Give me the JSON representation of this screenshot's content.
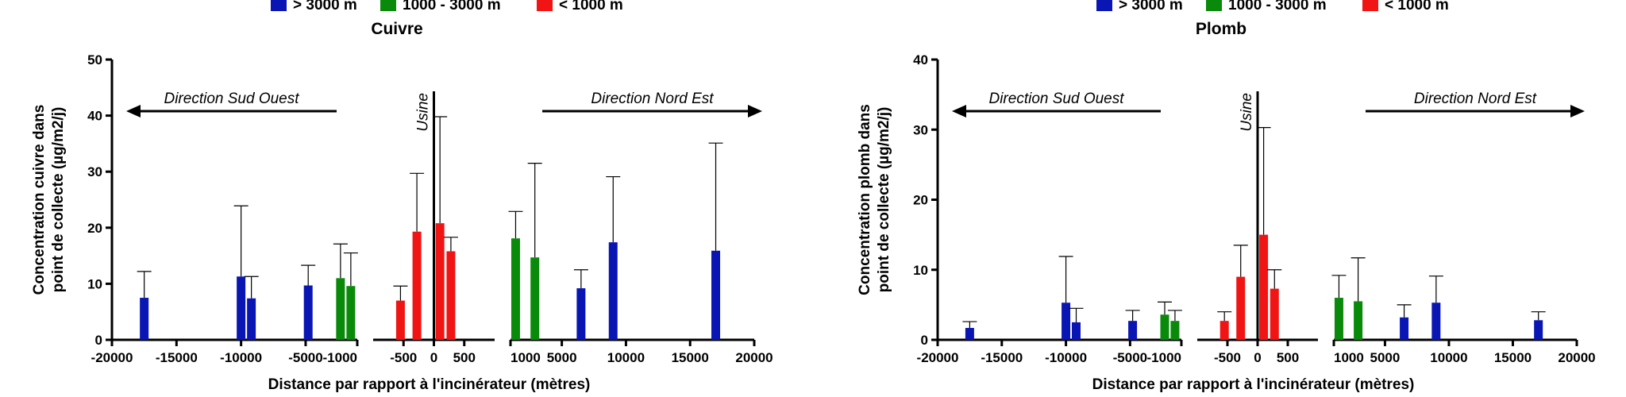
{
  "colors": {
    "far": "#0a16b4",
    "mid": "#0a8a0a",
    "near": "#f01414"
  },
  "chart_data": [
    {
      "type": "bar",
      "title": "Cuivre",
      "xlabel": "Distance par rapport à l'incinérateur (mètres)",
      "ylabel_line1": "Concentration cuivre dans",
      "ylabel_line2": "point de collecte (µg/m2/j)",
      "ylim": [
        0,
        50
      ],
      "y_ticks": [
        "0",
        "10",
        "20",
        "30",
        "40",
        "50"
      ],
      "x_ticks_left": [
        "-20000",
        "-15000",
        "-10000",
        "-5000"
      ],
      "x_ticks_mid": [
        "-1000",
        "-500",
        "0",
        "500",
        "1000"
      ],
      "x_ticks_right": [
        "5000",
        "10000",
        "15000",
        "20000"
      ],
      "legend": [
        "> 3000 m",
        "1000 - 3000 m",
        "< 1000 m"
      ],
      "left_arrow_label": "Direction Sud Ouest",
      "right_arrow_label": "Direction Nord Est",
      "plant_label": "Usine",
      "bars": [
        {
          "x": -17500,
          "value": 7.5,
          "err": 12.2,
          "group": "far"
        },
        {
          "x": -10000,
          "value": 11.3,
          "err": 23.9,
          "group": "far"
        },
        {
          "x": -9200,
          "value": 7.4,
          "err": 11.3,
          "group": "far"
        },
        {
          "x": -4800,
          "value": 9.7,
          "err": 13.3,
          "group": "far"
        },
        {
          "x": -2300,
          "value": 11.0,
          "err": 17.1,
          "group": "mid"
        },
        {
          "x": -1500,
          "value": 9.6,
          "err": 15.5,
          "group": "mid"
        },
        {
          "x": -550,
          "value": 7.0,
          "err": 9.6,
          "group": "near"
        },
        {
          "x": -280,
          "value": 19.3,
          "err": 29.7,
          "group": "near"
        },
        {
          "x": 100,
          "value": 20.8,
          "err": 39.8,
          "group": "near"
        },
        {
          "x": 280,
          "value": 15.8,
          "err": 18.3,
          "group": "near"
        },
        {
          "x": 1400,
          "value": 18.1,
          "err": 22.9,
          "group": "mid"
        },
        {
          "x": 2900,
          "value": 14.7,
          "err": 31.5,
          "group": "mid"
        },
        {
          "x": 6500,
          "value": 9.2,
          "err": 12.5,
          "group": "far"
        },
        {
          "x": 9000,
          "value": 17.4,
          "err": 29.1,
          "group": "far"
        },
        {
          "x": 17000,
          "value": 15.9,
          "err": 35.1,
          "group": "far"
        }
      ]
    },
    {
      "type": "bar",
      "title": "Plomb",
      "xlabel": "Distance par rapport à l'incinérateur (mètres)",
      "ylabel_line1": "Concentration plomb dans",
      "ylabel_line2": "point de collecte (µg/m2/j)",
      "ylim": [
        0,
        40
      ],
      "y_ticks": [
        "0",
        "10",
        "20",
        "30",
        "40"
      ],
      "x_ticks_left": [
        "-20000",
        "-15000",
        "-10000",
        "-5000"
      ],
      "x_ticks_mid": [
        "-1000",
        "-500",
        "0",
        "500",
        "1000"
      ],
      "x_ticks_right": [
        "5000",
        "10000",
        "15000",
        "20000"
      ],
      "legend": [
        "> 3000 m",
        "1000 - 3000 m",
        "< 1000 m"
      ],
      "left_arrow_label": "Direction Sud Ouest",
      "right_arrow_label": "Direction Nord Est",
      "plant_label": "Usine",
      "bars": [
        {
          "x": -17500,
          "value": 1.7,
          "err": 2.6,
          "group": "far"
        },
        {
          "x": -10000,
          "value": 5.3,
          "err": 11.9,
          "group": "far"
        },
        {
          "x": -9200,
          "value": 2.5,
          "err": 4.5,
          "group": "far"
        },
        {
          "x": -4800,
          "value": 2.7,
          "err": 4.2,
          "group": "far"
        },
        {
          "x": -2300,
          "value": 3.6,
          "err": 5.4,
          "group": "mid"
        },
        {
          "x": -1500,
          "value": 2.7,
          "err": 4.2,
          "group": "mid"
        },
        {
          "x": -550,
          "value": 2.7,
          "err": 4.0,
          "group": "near"
        },
        {
          "x": -280,
          "value": 9.0,
          "err": 13.5,
          "group": "near"
        },
        {
          "x": 100,
          "value": 15.0,
          "err": 30.3,
          "group": "near"
        },
        {
          "x": 280,
          "value": 7.3,
          "err": 10.0,
          "group": "near"
        },
        {
          "x": 1400,
          "value": 6.0,
          "err": 9.2,
          "group": "mid"
        },
        {
          "x": 2900,
          "value": 5.5,
          "err": 11.7,
          "group": "mid"
        },
        {
          "x": 6500,
          "value": 3.2,
          "err": 5.0,
          "group": "far"
        },
        {
          "x": 9000,
          "value": 5.3,
          "err": 9.1,
          "group": "far"
        },
        {
          "x": 17000,
          "value": 2.8,
          "err": 4.0,
          "group": "far"
        }
      ]
    }
  ]
}
